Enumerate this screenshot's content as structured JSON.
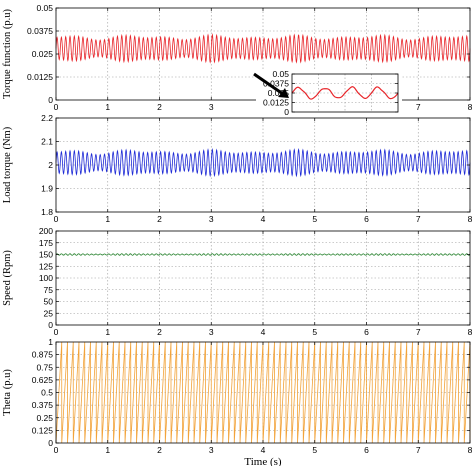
{
  "chart_data": [
    {
      "type": "line",
      "ylabel": "Torque function (p.u)",
      "xlim": [
        0,
        8
      ],
      "ylim": [
        0,
        0.05
      ],
      "xticks": [
        "0",
        "1",
        "2",
        "3",
        "4",
        "5",
        "6",
        "7",
        "8"
      ],
      "yticks": [
        "0",
        "0.0125",
        "0.025",
        "0.0375",
        "0.05"
      ],
      "grid": true,
      "series": [
        {
          "color": "#e8262b",
          "signal": {
            "mean": 0.028,
            "amplitude": 0.006,
            "cycles": 96
          }
        }
      ],
      "inset": {
        "ylim": [
          0,
          0.05
        ],
        "yticks": [
          "0",
          "0.0125",
          "0.025",
          "0.0375",
          "0.05"
        ],
        "grid": true,
        "color": "#e8262b",
        "signal": {
          "mean": 0.025,
          "amplitude": 0.007,
          "cycles": 4
        }
      }
    },
    {
      "type": "line",
      "ylabel": "Load torque (Nm)",
      "xlim": [
        0,
        8
      ],
      "ylim": [
        1.8,
        2.2
      ],
      "xticks": [
        "0",
        "1",
        "2",
        "3",
        "4",
        "5",
        "6",
        "7",
        "8"
      ],
      "yticks": [
        "1.8",
        "1.9",
        "2",
        "2.1",
        "2.2"
      ],
      "grid": true,
      "series": [
        {
          "color": "#1f2bd6",
          "signal": {
            "mean": 2.01,
            "amplitude": 0.045,
            "cycles": 96
          }
        }
      ]
    },
    {
      "type": "line",
      "ylabel": "Speed (Rpm)",
      "xlim": [
        0,
        8
      ],
      "ylim": [
        0,
        200
      ],
      "xticks": [
        "0",
        "1",
        "2",
        "3",
        "4",
        "5",
        "6",
        "7",
        "8"
      ],
      "yticks": [
        "0",
        "25",
        "50",
        "75",
        "100",
        "125",
        "150",
        "175",
        "200"
      ],
      "grid": true,
      "series": [
        {
          "color": "#2e8b35",
          "signal": {
            "mean": 150,
            "amplitude": 1.5,
            "cycles": 96
          }
        }
      ]
    },
    {
      "type": "line",
      "ylabel": "Theta (p.u)",
      "xlabel": "Time (s)",
      "xlim": [
        0,
        8
      ],
      "ylim": [
        0,
        1
      ],
      "xticks": [
        "0",
        "1",
        "2",
        "3",
        "4",
        "5",
        "6",
        "7",
        "8"
      ],
      "yticks": [
        "0",
        "0.125",
        "0.25",
        "0.375",
        "0.5",
        "0.625",
        "0.75",
        "0.875",
        "1"
      ],
      "grid": true,
      "series": [
        {
          "color": "#f2a33a",
          "signal": {
            "shape": "sawtooth",
            "min": 0,
            "max": 1,
            "cycles": 72
          }
        }
      ]
    }
  ]
}
